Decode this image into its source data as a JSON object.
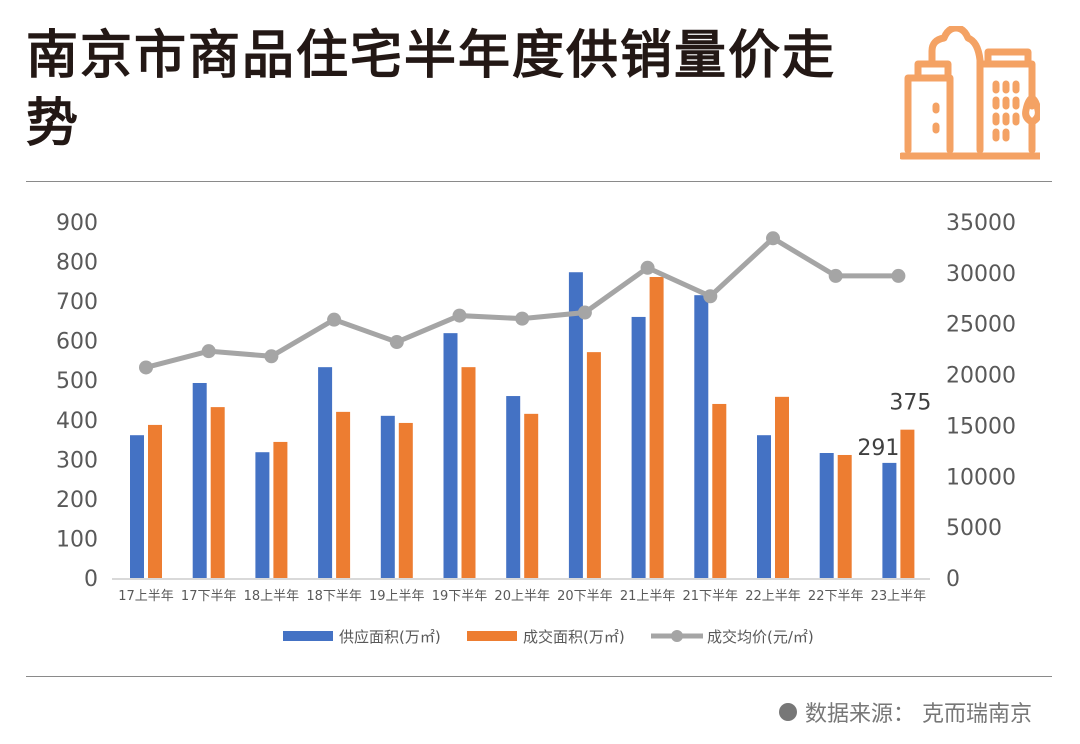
{
  "header": {
    "title": "南京市商品住宅半年度供销量价走势",
    "icon": "city-buildings-icon",
    "icon_color": "#F4A264"
  },
  "source": {
    "text": "数据来源：  克而瑞南京"
  },
  "chart_data": {
    "type": "bar",
    "title": "",
    "categories": [
      "17上半年",
      "17下半年",
      "18上半年",
      "18下半年",
      "19上半年",
      "19下半年",
      "20上半年",
      "20下半年",
      "21上半年",
      "21下半年",
      "22上半年",
      "22下半年",
      "23上半年"
    ],
    "series": [
      {
        "name": "供应面积(万㎡)",
        "type": "bar",
        "axis": "left",
        "color": "#4472C4",
        "values": [
          361,
          493,
          318,
          533,
          410,
          619,
          460,
          773,
          660,
          715,
          361,
          316,
          291
        ]
      },
      {
        "name": "成交面积(万㎡)",
        "type": "bar",
        "axis": "left",
        "color": "#ED7D31",
        "values": [
          387,
          432,
          344,
          420,
          392,
          533,
          415,
          571,
          761,
          440,
          458,
          311,
          375
        ]
      },
      {
        "name": "成交均价(元/㎡)",
        "type": "line",
        "axis": "right",
        "color": "#A5A5A5",
        "values": [
          20700,
          22300,
          21800,
          25400,
          23200,
          25800,
          25500,
          26100,
          30500,
          27700,
          33400,
          29700,
          29700
        ]
      }
    ],
    "data_labels": [
      {
        "series": 0,
        "index": 12,
        "text": "291"
      },
      {
        "series": 1,
        "index": 12,
        "text": "375"
      }
    ],
    "y_left": {
      "ylim": [
        0,
        900
      ],
      "ticks": [
        "0",
        "100",
        "200",
        "300",
        "400",
        "500",
        "600",
        "700",
        "800",
        "900"
      ]
    },
    "y_right": {
      "ylim": [
        0,
        35000
      ],
      "ticks": [
        "0",
        "5000",
        "10000",
        "15000",
        "20000",
        "25000",
        "30000",
        "35000"
      ]
    },
    "grid": false,
    "legend_position": "bottom"
  }
}
